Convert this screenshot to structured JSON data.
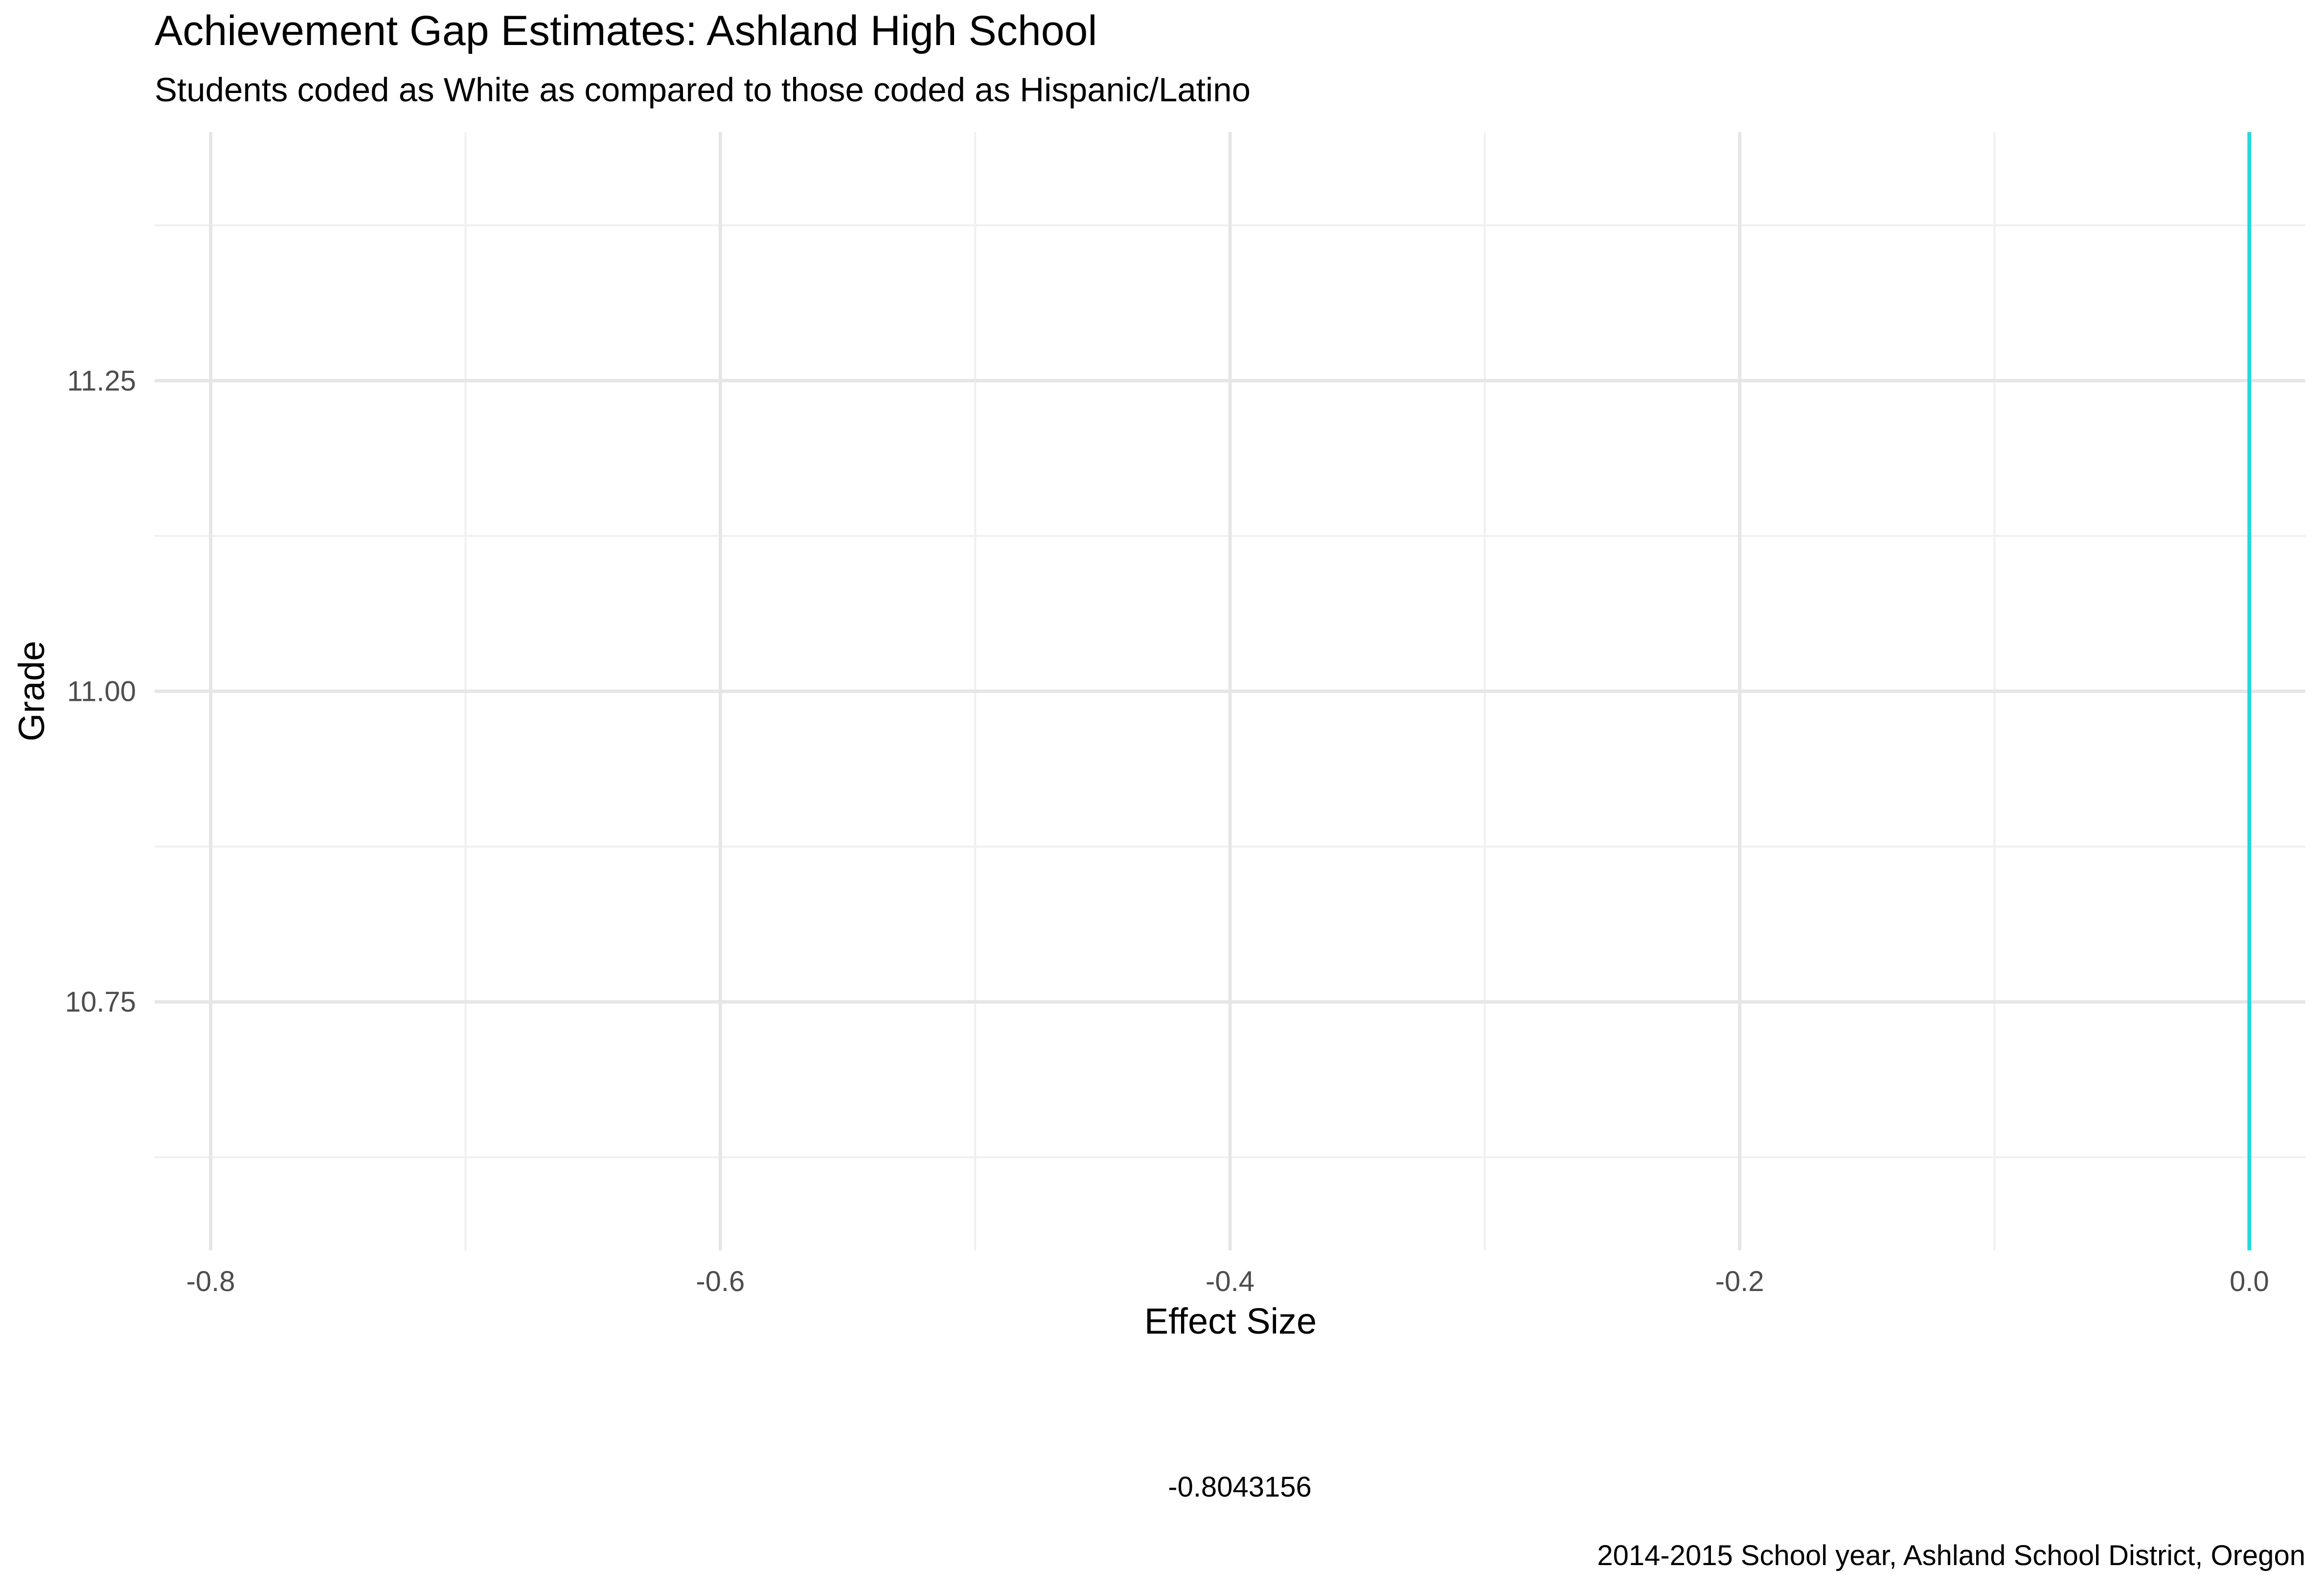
{
  "chart_data": {
    "type": "line",
    "title": "Achievement Gap Estimates: Ashland High School",
    "subtitle": "Students coded as White as compared to those coded as Hispanic/Latino",
    "xlabel": "Effect Size",
    "ylabel": "Grade",
    "caption": "2014-2015 School year, Ashland School District, Oregon",
    "annotation": "-0.8043156",
    "xlim": [
      -0.822,
      0.022
    ],
    "ylim": [
      10.55,
      11.45
    ],
    "x_ticks": [
      -0.8,
      -0.6,
      -0.4,
      -0.2,
      0.0
    ],
    "x_tick_labels": [
      "-0.8",
      "-0.6",
      "-0.4",
      "-0.2",
      "0.0"
    ],
    "y_ticks": [
      10.75,
      11.0,
      11.25
    ],
    "y_tick_labels": [
      "10.75",
      "11.00",
      "11.25"
    ],
    "x_minor_ticks": [
      -0.7,
      -0.5,
      -0.3,
      -0.1
    ],
    "y_minor_ticks": [
      10.625,
      10.875,
      11.125,
      11.375
    ],
    "grid": true,
    "reference_line": {
      "x": 0.0,
      "color": "#26d7e0"
    },
    "series": []
  },
  "colors": {
    "grid_major": "#e6e6e6",
    "grid_minor": "#f0f0f0",
    "tick_text": "#4d4d4d",
    "text": "#000000"
  }
}
